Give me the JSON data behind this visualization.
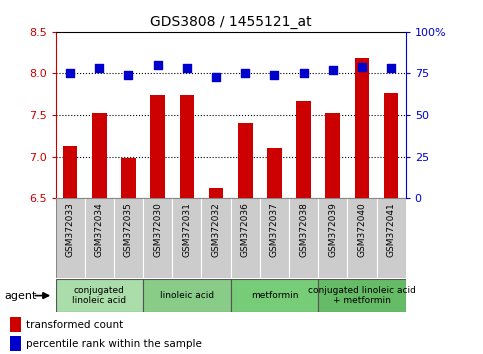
{
  "title": "GDS3808 / 1455121_at",
  "samples": [
    "GSM372033",
    "GSM372034",
    "GSM372035",
    "GSM372030",
    "GSM372031",
    "GSM372032",
    "GSM372036",
    "GSM372037",
    "GSM372038",
    "GSM372039",
    "GSM372040",
    "GSM372041"
  ],
  "transformed_count": [
    7.13,
    7.52,
    6.98,
    7.74,
    7.74,
    6.62,
    7.4,
    7.1,
    7.67,
    7.52,
    8.18,
    7.77
  ],
  "percentile_rank": [
    75,
    78,
    74,
    80,
    78,
    73,
    75,
    74,
    75,
    77,
    79,
    78
  ],
  "ylim_left": [
    6.5,
    8.5
  ],
  "ylim_right": [
    0,
    100
  ],
  "yticks_left": [
    6.5,
    7.0,
    7.5,
    8.0,
    8.5
  ],
  "yticks_right": [
    0,
    25,
    50,
    75,
    100
  ],
  "hlines": [
    7.0,
    7.5,
    8.0
  ],
  "bar_color": "#cc0000",
  "dot_color": "#0000cc",
  "agent_groups": [
    {
      "label": "conjugated\nlinoleic acid",
      "start": 0,
      "end": 3,
      "color": "#aaddaa"
    },
    {
      "label": "linoleic acid",
      "start": 3,
      "end": 6,
      "color": "#88cc88"
    },
    {
      "label": "metformin",
      "start": 6,
      "end": 9,
      "color": "#77cc77"
    },
    {
      "label": "conjugated linoleic acid\n+ metformin",
      "start": 9,
      "end": 12,
      "color": "#66bb66"
    }
  ],
  "legend_bar_color": "#cc0000",
  "legend_dot_color": "#0000cc",
  "legend_bar_label": "transformed count",
  "legend_dot_label": "percentile rank within the sample",
  "background_color": "#ffffff",
  "tick_label_bg": "#cccccc",
  "right_axis_color": "#0000cc",
  "left_axis_color": "#cc0000",
  "bar_width": 0.5,
  "dot_size": 40,
  "right_ytick_labels": [
    "0",
    "25",
    "50",
    "75",
    "100%"
  ]
}
